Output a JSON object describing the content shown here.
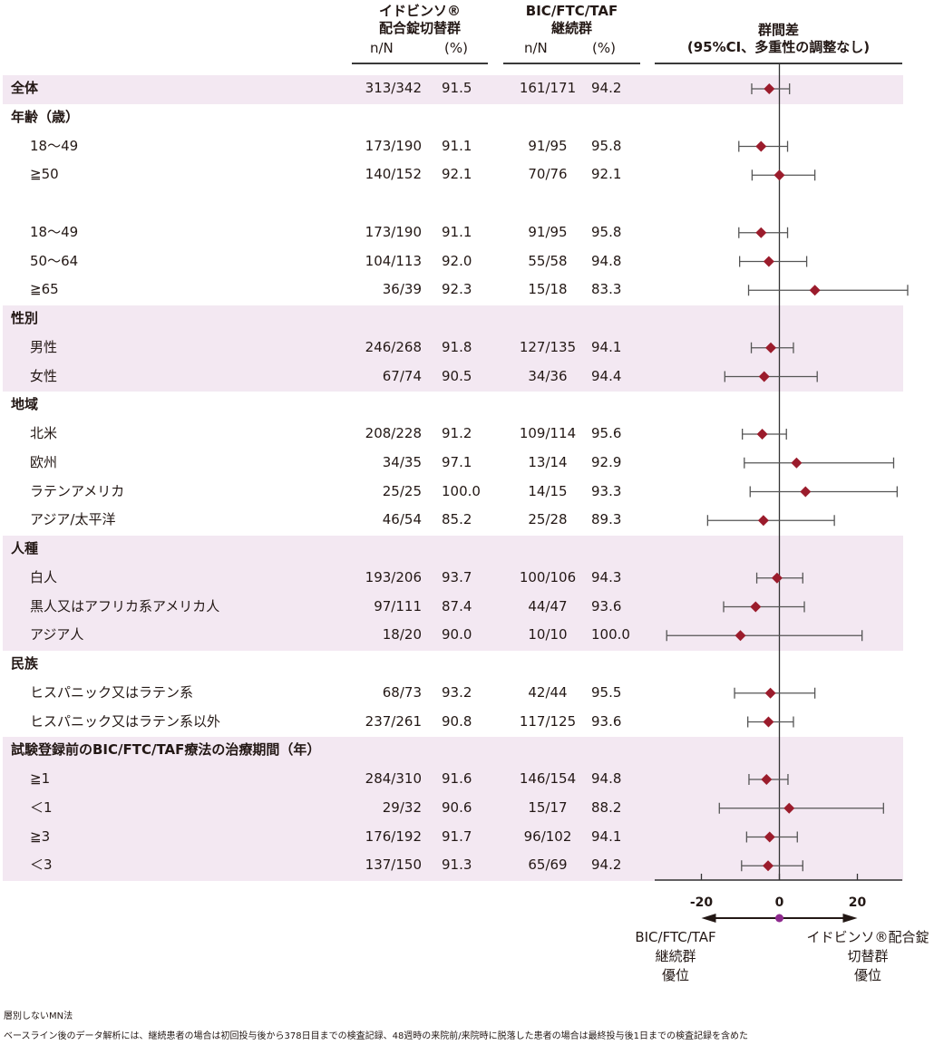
{
  "header": {
    "group1_line1": "イドビンソ®",
    "group1_line2": "配合錠切替群",
    "group2_line1": "BIC/FTC/TAF",
    "group2_line2": "継続群",
    "col_nN": "n/N",
    "col_pct": "(%)",
    "diff_line1": "群間差",
    "diff_line2": "(95%CI、多重性の調整なし)"
  },
  "colors": {
    "marker": "#9b1c2c",
    "ci_line": "#555555",
    "shade": "#f3e8f2",
    "zero_dot": "#8e2a8e"
  },
  "chart_data": {
    "type": "forest",
    "xlim": [
      -30,
      31
    ],
    "xticks": [
      "-20",
      "0",
      "20"
    ],
    "xtick_values": [
      -20,
      0,
      20
    ],
    "reference_line": 0,
    "left_label": [
      "BIC/FTC/TAF",
      "継続群",
      "優位"
    ],
    "right_label": [
      "イドビンソ®配合錠",
      "切替群",
      "優位"
    ],
    "rows": [
      {
        "label": "全体",
        "level": "group",
        "shaded": true,
        "n1": "313/342",
        "pct1": "91.5",
        "n2": "161/171",
        "pct2": "94.2",
        "est": -2.6,
        "lo": -7.1,
        "hi": 2.6
      },
      {
        "label": "年齢（歳）",
        "level": "group",
        "shaded": false
      },
      {
        "label": "18〜49",
        "level": "sub",
        "shaded": false,
        "n1": "173/190",
        "pct1": "91.1",
        "n2": "91/95",
        "pct2": "95.8",
        "est": -4.7,
        "lo": -10.4,
        "hi": 2.1
      },
      {
        "label": "≧50",
        "level": "sub",
        "shaded": false,
        "n1": "140/152",
        "pct1": "92.1",
        "n2": "70/76",
        "pct2": "92.1",
        "est": 0.0,
        "lo": -7.0,
        "hi": 9.1
      },
      {
        "label": "",
        "level": "blank",
        "shaded": false
      },
      {
        "label": "18〜49",
        "level": "sub",
        "shaded": false,
        "n1": "173/190",
        "pct1": "91.1",
        "n2": "91/95",
        "pct2": "95.8",
        "est": -4.7,
        "lo": -10.4,
        "hi": 2.1
      },
      {
        "label": "50〜64",
        "level": "sub",
        "shaded": false,
        "n1": "104/113",
        "pct1": "92.0",
        "n2": "55/58",
        "pct2": "94.8",
        "est": -2.7,
        "lo": -10.2,
        "hi": 7.0
      },
      {
        "label": "≧65",
        "level": "sub",
        "shaded": false,
        "n1": "36/39",
        "pct1": "92.3",
        "n2": "15/18",
        "pct2": "83.3",
        "est": 9.1,
        "lo": -7.9,
        "hi": 32.9
      },
      {
        "label": "性別",
        "level": "group",
        "shaded": true
      },
      {
        "label": "男性",
        "level": "sub",
        "shaded": true,
        "n1": "246/268",
        "pct1": "91.8",
        "n2": "127/135",
        "pct2": "94.1",
        "est": -2.2,
        "lo": -7.2,
        "hi": 3.6
      },
      {
        "label": "女性",
        "level": "sub",
        "shaded": true,
        "n1": "67/74",
        "pct1": "90.5",
        "n2": "34/36",
        "pct2": "94.4",
        "est": -3.9,
        "lo": -14.0,
        "hi": 9.7
      },
      {
        "label": "地域",
        "level": "group",
        "shaded": false
      },
      {
        "label": "北米",
        "level": "sub",
        "shaded": false,
        "n1": "208/228",
        "pct1": "91.2",
        "n2": "109/114",
        "pct2": "95.6",
        "est": -4.4,
        "lo": -9.5,
        "hi": 1.8
      },
      {
        "label": "欧州",
        "level": "sub",
        "shaded": false,
        "n1": "34/35",
        "pct1": "97.1",
        "n2": "13/14",
        "pct2": "92.9",
        "est": 4.4,
        "lo": -9.0,
        "hi": 29.3
      },
      {
        "label": "ラテンアメリカ",
        "level": "sub",
        "shaded": false,
        "n1": "25/25",
        "pct1": "100.0",
        "n2": "14/15",
        "pct2": "93.3",
        "est": 6.7,
        "lo": -7.5,
        "hi": 30.2
      },
      {
        "label": "アジア/太平洋",
        "level": "sub",
        "shaded": false,
        "n1": "46/54",
        "pct1": "85.2",
        "n2": "25/28",
        "pct2": "89.3",
        "est": -4.1,
        "lo": -18.4,
        "hi": 14.1
      },
      {
        "label": "人種",
        "level": "group",
        "shaded": true
      },
      {
        "label": "白人",
        "level": "sub",
        "shaded": true,
        "n1": "193/206",
        "pct1": "93.7",
        "n2": "100/106",
        "pct2": "94.3",
        "est": -0.6,
        "lo": -5.8,
        "hi": 6.0
      },
      {
        "label": "黒人又はアフリカ系アメリカ人",
        "level": "sub",
        "shaded": true,
        "n1": "97/111",
        "pct1": "87.4",
        "n2": "44/47",
        "pct2": "93.6",
        "est": -6.1,
        "lo": -14.3,
        "hi": 6.4
      },
      {
        "label": "アジア人",
        "level": "sub",
        "shaded": true,
        "n1": "18/20",
        "pct1": "90.0",
        "n2": "10/10",
        "pct2": "100.0",
        "est": -10.0,
        "lo": -28.9,
        "hi": 21.2
      },
      {
        "label": "民族",
        "level": "group",
        "shaded": false
      },
      {
        "label": "ヒスパニック又はラテン系",
        "level": "sub",
        "shaded": false,
        "n1": "68/73",
        "pct1": "93.2",
        "n2": "42/44",
        "pct2": "95.5",
        "est": -2.3,
        "lo": -11.5,
        "hi": 9.1
      },
      {
        "label": "ヒスパニック又はラテン系以外",
        "level": "sub",
        "shaded": false,
        "n1": "237/261",
        "pct1": "90.8",
        "n2": "117/125",
        "pct2": "93.6",
        "est": -2.8,
        "lo": -8.1,
        "hi": 3.6
      },
      {
        "label": "試験登録前のBIC/FTC/TAF療法の治療期間（年）",
        "level": "group",
        "shaded": true
      },
      {
        "label": "≧1",
        "level": "sub",
        "shaded": true,
        "n1": "284/310",
        "pct1": "91.6",
        "n2": "146/154",
        "pct2": "94.8",
        "est": -3.3,
        "lo": -7.8,
        "hi": 2.2
      },
      {
        "label": "＜1",
        "level": "sub",
        "shaded": true,
        "n1": "29/32",
        "pct1": "90.6",
        "n2": "15/17",
        "pct2": "88.2",
        "est": 2.5,
        "lo": -15.4,
        "hi": 26.7
      },
      {
        "label": "≧3",
        "level": "sub",
        "shaded": true,
        "n1": "176/192",
        "pct1": "91.7",
        "n2": "96/102",
        "pct2": "94.1",
        "est": -2.5,
        "lo": -8.4,
        "hi": 4.6
      },
      {
        "label": "＜3",
        "level": "sub",
        "shaded": true,
        "n1": "137/150",
        "pct1": "91.3",
        "n2": "65/69",
        "pct2": "94.2",
        "est": -2.9,
        "lo": -9.7,
        "hi": 6.0
      }
    ]
  },
  "footnotes": [
    "層別しないMN法",
    "ベースライン後のデータ解析には、継続患者の場合は初回投与後から378日目までの検査記録、48週時の来院前/来院時に脱落した患者の場合は最終投与後1日までの検査記録を含めた"
  ]
}
